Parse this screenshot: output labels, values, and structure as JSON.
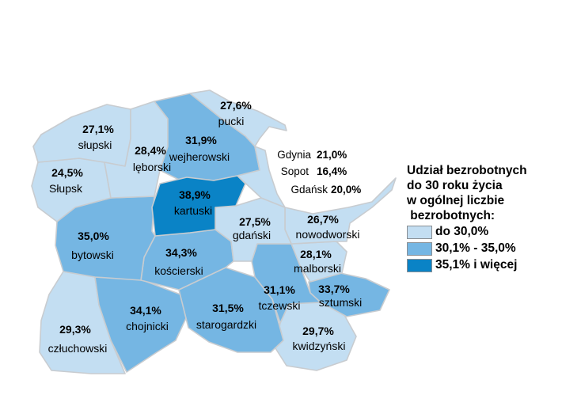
{
  "colors": {
    "level1": "#c3def2",
    "level2": "#75b6e3",
    "level3": "#0a83c6",
    "border": "#c8ccd0"
  },
  "counties": [
    {
      "id": "pucki",
      "name": "pucki",
      "value": "27,6%",
      "level": 1
    },
    {
      "id": "slupski",
      "name": "słupski",
      "value": "27,1%",
      "level": 1
    },
    {
      "id": "leborski",
      "name": "lęborski",
      "value": "28,4%",
      "level": 1
    },
    {
      "id": "wejherowski",
      "name": "wejherowski",
      "value": "31,9%",
      "level": 2
    },
    {
      "id": "slupsk",
      "name": "Słupsk",
      "value": "24,5%",
      "level": 1
    },
    {
      "id": "kartuski",
      "name": "kartuski",
      "value": "38,9%",
      "level": 3
    },
    {
      "id": "gdanski",
      "name": "gdański",
      "value": "27,5%",
      "level": 1
    },
    {
      "id": "nowodworski",
      "name": "nowodworski",
      "value": "26,7%",
      "level": 1
    },
    {
      "id": "bytowski",
      "name": "bytowski",
      "value": "35,0%",
      "level": 2
    },
    {
      "id": "koscierski",
      "name": "kościerski",
      "value": "34,3%",
      "level": 2
    },
    {
      "id": "malborski",
      "name": "malborski",
      "value": "28,1%",
      "level": 1
    },
    {
      "id": "tczewski",
      "name": "tczewski",
      "value": "31,1%",
      "level": 2
    },
    {
      "id": "sztumski",
      "name": "sztumski",
      "value": "33,7%",
      "level": 2
    },
    {
      "id": "chojnicki",
      "name": "chojnicki",
      "value": "34,1%",
      "level": 2
    },
    {
      "id": "starogardzki",
      "name": "starogardzki",
      "value": "31,5%",
      "level": 2
    },
    {
      "id": "czluchowski",
      "name": "człuchowski",
      "value": "29,3%",
      "level": 1
    },
    {
      "id": "kwidzynski",
      "name": "kwidzyński",
      "value": "29,7%",
      "level": 1
    }
  ],
  "cities": [
    {
      "name": "Gdynia",
      "value": "21,0%"
    },
    {
      "name": "Sopot",
      "value": "16,4%"
    },
    {
      "name": "Gdańsk",
      "value": "20,0%"
    }
  ],
  "legend": {
    "title_lines": [
      "Udział bezrobotnych",
      "do 30 roku życia",
      "w ogólnej liczbie",
      " bezrobotnych:"
    ],
    "items": [
      {
        "label": "do 30,0%",
        "level": 1
      },
      {
        "label": "30,1% - 35,0%",
        "level": 2
      },
      {
        "label": "35,1% i więcej",
        "level": 3
      }
    ]
  }
}
